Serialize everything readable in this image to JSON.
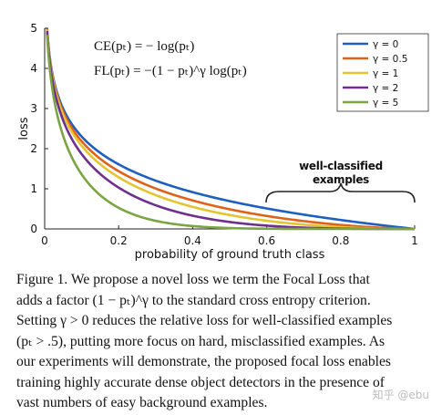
{
  "figure": {
    "equations": {
      "ce": "CE(pₜ) = − log(pₜ)",
      "fl": "FL(pₜ) = −(1 − pₜ)^γ log(pₜ)"
    },
    "annotation": {
      "line1": "well-classified",
      "line2": "examples"
    },
    "caption_lines": [
      "Figure 1. We propose a novel loss we term the Focal Loss that",
      "adds a factor (1 − pₜ)^γ to the standard cross entropy criterion.",
      "Setting γ > 0 reduces the relative loss for well-classified examples",
      "(pₜ > .5), putting more focus on hard, misclassified examples. As",
      "our experiments will demonstrate, the proposed focal loss enables",
      "training highly accurate dense object detectors in the presence of",
      "vast numbers of easy background examples."
    ],
    "watermark": "知乎 @ebu"
  },
  "chart_data": {
    "type": "line",
    "xlabel": "probability of ground truth class",
    "ylabel": "loss",
    "xlim": [
      0,
      1
    ],
    "ylim": [
      0,
      5
    ],
    "xticks": [
      "0",
      "0.2",
      "0.4",
      "0.6",
      "0.8",
      "1"
    ],
    "yticks": [
      "0",
      "1",
      "2",
      "3",
      "4",
      "5"
    ],
    "legend_position": "top-right",
    "grid": false,
    "function": "-(1-p)^gamma * log(p)",
    "series": [
      {
        "name": "γ = 0",
        "gamma": 0,
        "color": "#1f5fbf"
      },
      {
        "name": "γ = 0.5",
        "gamma": 0.5,
        "color": "#e0621a"
      },
      {
        "name": "γ = 1",
        "gamma": 1,
        "color": "#e3c532"
      },
      {
        "name": "γ = 2",
        "gamma": 2,
        "color": "#6f2f8f"
      },
      {
        "name": "γ = 5",
        "gamma": 5,
        "color": "#7aa542"
      }
    ]
  }
}
